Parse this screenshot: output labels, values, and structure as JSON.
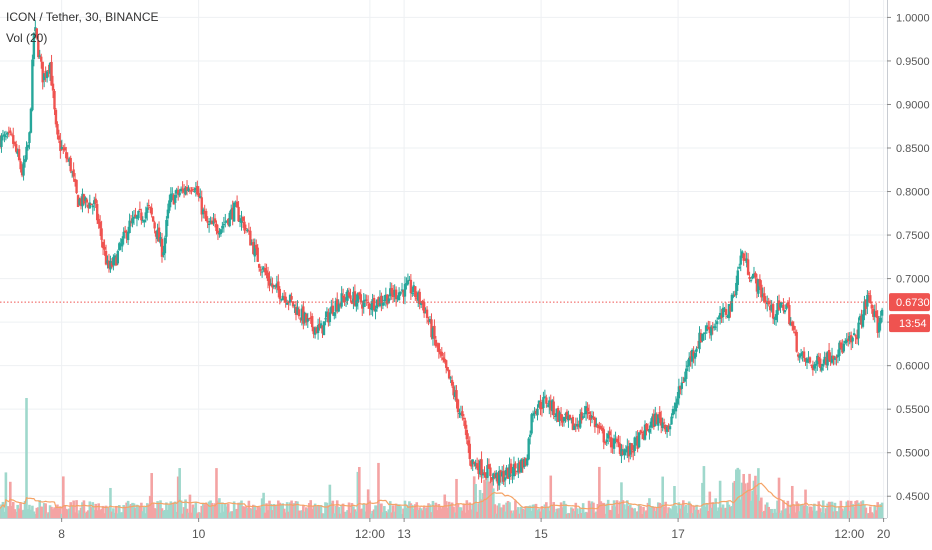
{
  "header": {
    "symbol_line": "ICON / Tether, 30, BINANCE",
    "volume_line": "Vol (20)"
  },
  "chart_data": {
    "type": "candlestick",
    "symbol": "ICON / Tether",
    "interval": "30",
    "exchange": "BINANCE",
    "ylim": [
      0.425,
      1.02
    ],
    "ytick_labels": [
      "1.0000",
      "0.9500",
      "0.9000",
      "0.8500",
      "0.8000",
      "0.7500",
      "0.7000",
      "0.6500",
      "0.6000",
      "0.5500",
      "0.5000",
      "0.4500"
    ],
    "ytick_values": [
      1.0,
      0.95,
      0.9,
      0.85,
      0.8,
      0.75,
      0.7,
      0.65,
      0.6,
      0.55,
      0.5,
      0.45
    ],
    "xtick_labels": [
      "8",
      "10",
      "12:00",
      "13",
      "15",
      "17",
      "12:00",
      "20"
    ],
    "xtick_values": [
      8,
      10,
      12.5,
      13,
      15,
      17,
      19.5,
      20
    ],
    "xlim": [
      7.1,
      20.05
    ],
    "grid": true,
    "last_price": {
      "value": 0.673,
      "label": "0.6730"
    },
    "countdown": {
      "label": "13:54"
    },
    "price_path": [
      [
        7.1,
        0.86
      ],
      [
        7.3,
        0.86
      ],
      [
        7.45,
        0.82
      ],
      [
        7.55,
        0.86
      ],
      [
        7.62,
        0.99
      ],
      [
        7.75,
        0.93
      ],
      [
        7.85,
        0.95
      ],
      [
        7.95,
        0.86
      ],
      [
        8.15,
        0.83
      ],
      [
        8.25,
        0.79
      ],
      [
        8.5,
        0.785
      ],
      [
        8.7,
        0.71
      ],
      [
        8.8,
        0.72
      ],
      [
        9.0,
        0.76
      ],
      [
        9.3,
        0.78
      ],
      [
        9.5,
        0.73
      ],
      [
        9.6,
        0.79
      ],
      [
        9.95,
        0.81
      ],
      [
        10.15,
        0.76
      ],
      [
        10.35,
        0.76
      ],
      [
        10.55,
        0.78
      ],
      [
        10.7,
        0.76
      ],
      [
        10.9,
        0.72
      ],
      [
        11.1,
        0.69
      ],
      [
        11.3,
        0.68
      ],
      [
        11.6,
        0.65
      ],
      [
        11.8,
        0.64
      ],
      [
        12.0,
        0.67
      ],
      [
        12.2,
        0.68
      ],
      [
        12.5,
        0.67
      ],
      [
        12.8,
        0.68
      ],
      [
        13.1,
        0.69
      ],
      [
        13.3,
        0.67
      ],
      [
        13.5,
        0.62
      ],
      [
        13.7,
        0.58
      ],
      [
        13.9,
        0.53
      ],
      [
        14.0,
        0.49
      ],
      [
        14.2,
        0.48
      ],
      [
        14.4,
        0.47
      ],
      [
        14.6,
        0.48
      ],
      [
        14.8,
        0.49
      ],
      [
        14.9,
        0.55
      ],
      [
        15.1,
        0.56
      ],
      [
        15.3,
        0.54
      ],
      [
        15.5,
        0.53
      ],
      [
        15.7,
        0.55
      ],
      [
        15.9,
        0.52
      ],
      [
        16.1,
        0.51
      ],
      [
        16.3,
        0.5
      ],
      [
        16.5,
        0.52
      ],
      [
        16.7,
        0.54
      ],
      [
        16.9,
        0.53
      ],
      [
        17.0,
        0.56
      ],
      [
        17.2,
        0.61
      ],
      [
        17.4,
        0.64
      ],
      [
        17.6,
        0.65
      ],
      [
        17.8,
        0.67
      ],
      [
        17.95,
        0.73
      ],
      [
        18.05,
        0.71
      ],
      [
        18.2,
        0.69
      ],
      [
        18.4,
        0.66
      ],
      [
        18.6,
        0.67
      ],
      [
        18.8,
        0.61
      ],
      [
        19.0,
        0.6
      ],
      [
        19.2,
        0.61
      ],
      [
        19.4,
        0.62
      ],
      [
        19.6,
        0.63
      ],
      [
        19.8,
        0.68
      ],
      [
        19.95,
        0.64
      ],
      [
        20.0,
        0.673
      ]
    ],
    "volume_scale": "relative",
    "volume_peak": 1.0
  },
  "colors": {
    "up": "#26a69a",
    "down": "#ef5350",
    "vol_up": "#9fd8cc",
    "vol_down": "#f4a3a3",
    "ma_line": "#f5a366",
    "price_line": "#ef5350",
    "grid": "#eef0f3",
    "axis_text": "#555555"
  }
}
